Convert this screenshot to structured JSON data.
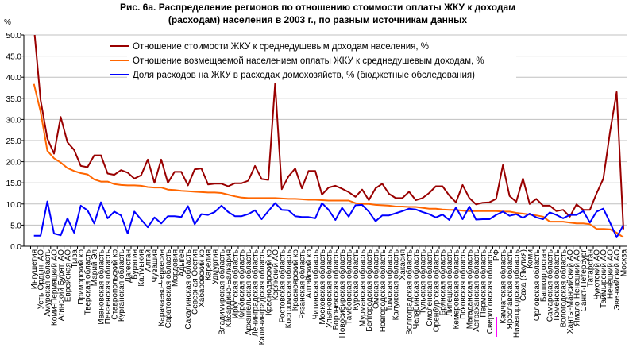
{
  "chart_data": {
    "type": "line",
    "title_lines": [
      "Рис. 6а. Распределение регионов по отношению стоимости оплаты ЖКУ к доходам",
      "(расходам) населения в 2003 г., по разным источникам данных"
    ],
    "ylabel": "%",
    "xlabel": "",
    "ylim": [
      0,
      50
    ],
    "yticks": [
      "0.0",
      "5.0",
      "10.0",
      "15.0",
      "20.0",
      "25.0",
      "30.0",
      "35.0",
      "40.0",
      "45.0",
      "50.0"
    ],
    "grid": true,
    "legend_position": "top-center",
    "categories": [
      "Ингушетия",
      "Усть-Ордын. АО",
      "Амурская область",
      "Коми-Пермяцкий АО",
      "Агинский Бурят. АО",
      "Еврейская АО",
      "Тыва",
      "Приморский кр",
      "Тверская область",
      "Марий Эл",
      "Ивановская область",
      "Пензенская область",
      "Ставропольский кр",
      "Курганская область",
      "Дагестан",
      "Бурятия",
      "Калмыкия",
      "Алтай",
      "Чувашия",
      "Карачаево-Черкесия",
      "Саратовская область",
      "Мордовия",
      "Адыгея",
      "Сахалинская область",
      "Северная Осетия",
      "Хабаровский кр",
      "Карелия",
      "Удмуртия",
      "Владимирская область",
      "Кабардино-Балкария",
      "Иркутская область",
      "Кировская область",
      "Архангельская область",
      "Ленинградская область",
      "Калининградская область",
      "Краснодарский кр",
      "Корякский АО",
      "Ростовская область",
      "Костромская область",
      "Красноярский кр",
      "Рязанская область",
      "Алтайский кр",
      "Читинская область",
      "Московская область",
      "Ульяновская область",
      "Воронежская область",
      "Новосибирская область",
      "Тамбовская область",
      "Курская область",
      "Мурманская область",
      "Белгородская область",
      "Омская область",
      "Новгородская область",
      "Томская область",
      "Калужская область",
      "Хакасия",
      "Волгоградская область",
      "Челябинская область",
      "Тульская область",
      "Смоленская область",
      "Оренбургская область",
      "Брянская область",
      "Липецкая область",
      "Кемеровская область",
      "Псковская область",
      "Магаданская область",
      "Астраханская область",
      "Пермская область",
      "Свердловская область",
      "РФ",
      "Камчатская область",
      "Ярославская область",
      "Нижегородская область",
      "Саха (Якутия)",
      "Коми",
      "Орловская область",
      "Башкортостан",
      "Самарская область",
      "Тюменская область",
      "Вологодская область",
      "Ханты-Мансийский АО",
      "Ямало-Ненецкий АО",
      "Санкт-Петербург",
      "Татарстан",
      "Чукотский АО",
      "Таймырский АО",
      "Ненецкий АО",
      "Эвенкийский АО",
      "Москва"
    ],
    "highlight_category": "РФ",
    "series": [
      {
        "name": "Отношение стоимости ЖКУ к среднедушевым доходам населения, %",
        "color": "#990000",
        "values": [
          58,
          34.6,
          25.5,
          21.9,
          30.6,
          24.6,
          22.8,
          19.0,
          18.7,
          21.5,
          21.5,
          17.2,
          16.9,
          18.0,
          17.4,
          16.0,
          16.8,
          20.5,
          15.0,
          20.5,
          15.0,
          17.6,
          17.6,
          14.4,
          18.2,
          18.4,
          14.6,
          14.8,
          14.8,
          14.2,
          14.9,
          14.9,
          15.5,
          19.0,
          15.9,
          15.7,
          38.5,
          13.5,
          16.5,
          18.4,
          13.7,
          17.8,
          17.8,
          12.2,
          13.9,
          14.3,
          13.6,
          12.8,
          11.7,
          13.4,
          10.9,
          13.7,
          14.8,
          12.4,
          11.4,
          11.4,
          12.9,
          10.9,
          11.4,
          12.6,
          14.2,
          14.2,
          12.0,
          10.4,
          14.5,
          11.4,
          9.9,
          10.3,
          10.4,
          11.2,
          19.2,
          11.9,
          10.5,
          16.0,
          10.0,
          11.2,
          9.6,
          9.6,
          8.3,
          8.6,
          7.0,
          9.9,
          8.6,
          8.6,
          12.5,
          16.0,
          27.0,
          36.5,
          4.0
        ]
      },
      {
        "name": "Отношение возмещаемой населением оплаты ЖКУ к среднедушевым доходам, %",
        "color": "#ff6600",
        "values": [
          38.4,
          31.8,
          22.6,
          20.8,
          19.8,
          18.5,
          17.8,
          17.3,
          17.0,
          15.8,
          15.3,
          15.3,
          14.7,
          14.5,
          14.4,
          14.4,
          14.3,
          14.0,
          13.9,
          13.9,
          13.4,
          13.3,
          13.1,
          13.0,
          12.9,
          12.8,
          12.7,
          12.7,
          12.6,
          12.2,
          11.8,
          11.5,
          11.4,
          11.4,
          11.4,
          11.4,
          11.4,
          11.3,
          11.2,
          11.2,
          11.1,
          11.0,
          11.0,
          10.9,
          10.8,
          10.8,
          10.8,
          10.8,
          10.2,
          10.0,
          10.0,
          9.8,
          9.7,
          9.6,
          9.4,
          9.4,
          9.3,
          9.3,
          9.1,
          8.9,
          8.9,
          8.7,
          8.6,
          8.6,
          8.4,
          8.3,
          8.3,
          8.3,
          8.3,
          8.3,
          8.2,
          8.2,
          7.9,
          7.7,
          7.5,
          7.3,
          7.0,
          5.8,
          5.8,
          5.8,
          5.6,
          5.4,
          5.4,
          5.2,
          4.1,
          4.1,
          4.0,
          3.2,
          2.1
        ]
      },
      {
        "name": "Доля расходов на ЖКУ в расходах домохозяйств, % (бюджетные обследования)",
        "color": "#0000ff",
        "values": [
          2.5,
          2.5,
          10.6,
          3.0,
          2.6,
          6.6,
          3.2,
          9.6,
          8.5,
          5.4,
          10.4,
          6.6,
          8.2,
          7.3,
          3.0,
          8.2,
          6.3,
          4.5,
          6.8,
          5.4,
          7.1,
          7.1,
          6.9,
          9.5,
          5.2,
          7.6,
          7.4,
          8.1,
          9.6,
          8.1,
          7.1,
          7.1,
          7.6,
          8.5,
          6.4,
          8.3,
          10.2,
          8.6,
          8.5,
          7.1,
          6.9,
          6.9,
          6.6,
          10.2,
          8.6,
          6.2,
          9.1,
          7.0,
          9.7,
          9.8,
          8.2,
          5.9,
          7.3,
          7.3,
          7.8,
          8.3,
          8.9,
          8.7,
          8.1,
          7.6,
          6.8,
          7.5,
          6.2,
          9.2,
          6.4,
          9.4,
          6.3,
          6.4,
          6.4,
          7.4,
          8.2,
          7.2,
          7.6,
          6.7,
          7.7,
          6.8,
          6.4,
          8.0,
          7.4,
          6.6,
          7.4,
          7.4,
          8.3,
          5.6,
          8.2,
          8.9,
          5.6,
          2.1,
          5.0
        ]
      }
    ]
  }
}
